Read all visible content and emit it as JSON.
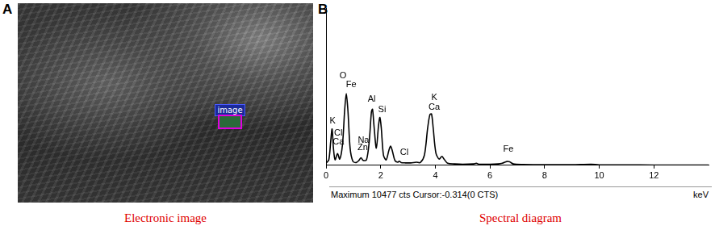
{
  "panels": [
    {
      "label": "A",
      "image_overlay_label": "image",
      "caption": "Electronic image"
    },
    {
      "label": "B",
      "caption": "Spectral diagram"
    }
  ],
  "chart_data": {
    "type": "line",
    "x": [
      0,
      0.1,
      0.17,
      0.22,
      0.27,
      0.33,
      0.42,
      0.5,
      0.6,
      0.68,
      0.74,
      0.8,
      0.88,
      0.98,
      1.1,
      1.2,
      1.28,
      1.36,
      1.48,
      1.58,
      1.66,
      1.7,
      1.76,
      1.84,
      1.92,
      1.97,
      2.02,
      2.1,
      2.2,
      2.3,
      2.36,
      2.42,
      2.52,
      2.62,
      2.68,
      2.75,
      2.9,
      3.1,
      3.3,
      3.45,
      3.6,
      3.72,
      3.8,
      3.86,
      3.92,
      4.02,
      4.14,
      4.24,
      4.32,
      4.45,
      4.7,
      5.0,
      5.4,
      5.5,
      5.6,
      6.0,
      6.3,
      6.45,
      6.62,
      6.72,
      6.85,
      7.2,
      8,
      9,
      9.7,
      10,
      11,
      12,
      13,
      14
    ],
    "values": [
      300,
      800,
      3500,
      5300,
      2500,
      800,
      1700,
      900,
      3000,
      8000,
      10477,
      8000,
      2500,
      600,
      400,
      700,
      1100,
      700,
      800,
      3500,
      7800,
      8200,
      5500,
      2500,
      5800,
      7000,
      5500,
      1500,
      800,
      2200,
      2800,
      2200,
      700,
      450,
      600,
      400,
      350,
      350,
      450,
      400,
      1500,
      5500,
      7400,
      7500,
      5500,
      1800,
      900,
      1300,
      900,
      300,
      200,
      150,
      200,
      300,
      150,
      150,
      200,
      300,
      550,
      500,
      200,
      120,
      100,
      80,
      150,
      60,
      50,
      40,
      30,
      30
    ],
    "color": "#000000",
    "xlim": [
      0,
      14
    ],
    "xticks": [
      0,
      2,
      4,
      6,
      8,
      10,
      12
    ],
    "ylim": [
      0,
      23000
    ],
    "x_label": "keV",
    "footer": "Maximum 10477 cts Cursor:-0.314(0 CTS)",
    "grid": false,
    "tick_labels": "x",
    "annotations": [
      {
        "text": "K",
        "x": 0.24,
        "y": 5850
      },
      {
        "text": "Cl",
        "x": 0.45,
        "y": 4100
      },
      {
        "text": "Ca",
        "x": 0.45,
        "y": 2800
      },
      {
        "text": "O",
        "x": 0.62,
        "y": 12400
      },
      {
        "text": "Fe",
        "x": 0.92,
        "y": 11100
      },
      {
        "text": "Na",
        "x": 1.37,
        "y": 3040
      },
      {
        "text": "Zn",
        "x": 1.34,
        "y": 1870
      },
      {
        "text": "Al",
        "x": 1.67,
        "y": 9000
      },
      {
        "text": "Si",
        "x": 2.05,
        "y": 7500
      },
      {
        "text": "Cl",
        "x": 2.86,
        "y": 1170
      },
      {
        "text": "K",
        "x": 3.96,
        "y": 9240
      },
      {
        "text": "Ca",
        "x": 3.96,
        "y": 7840
      },
      {
        "text": "Fe",
        "x": 6.67,
        "y": 1640
      }
    ]
  }
}
